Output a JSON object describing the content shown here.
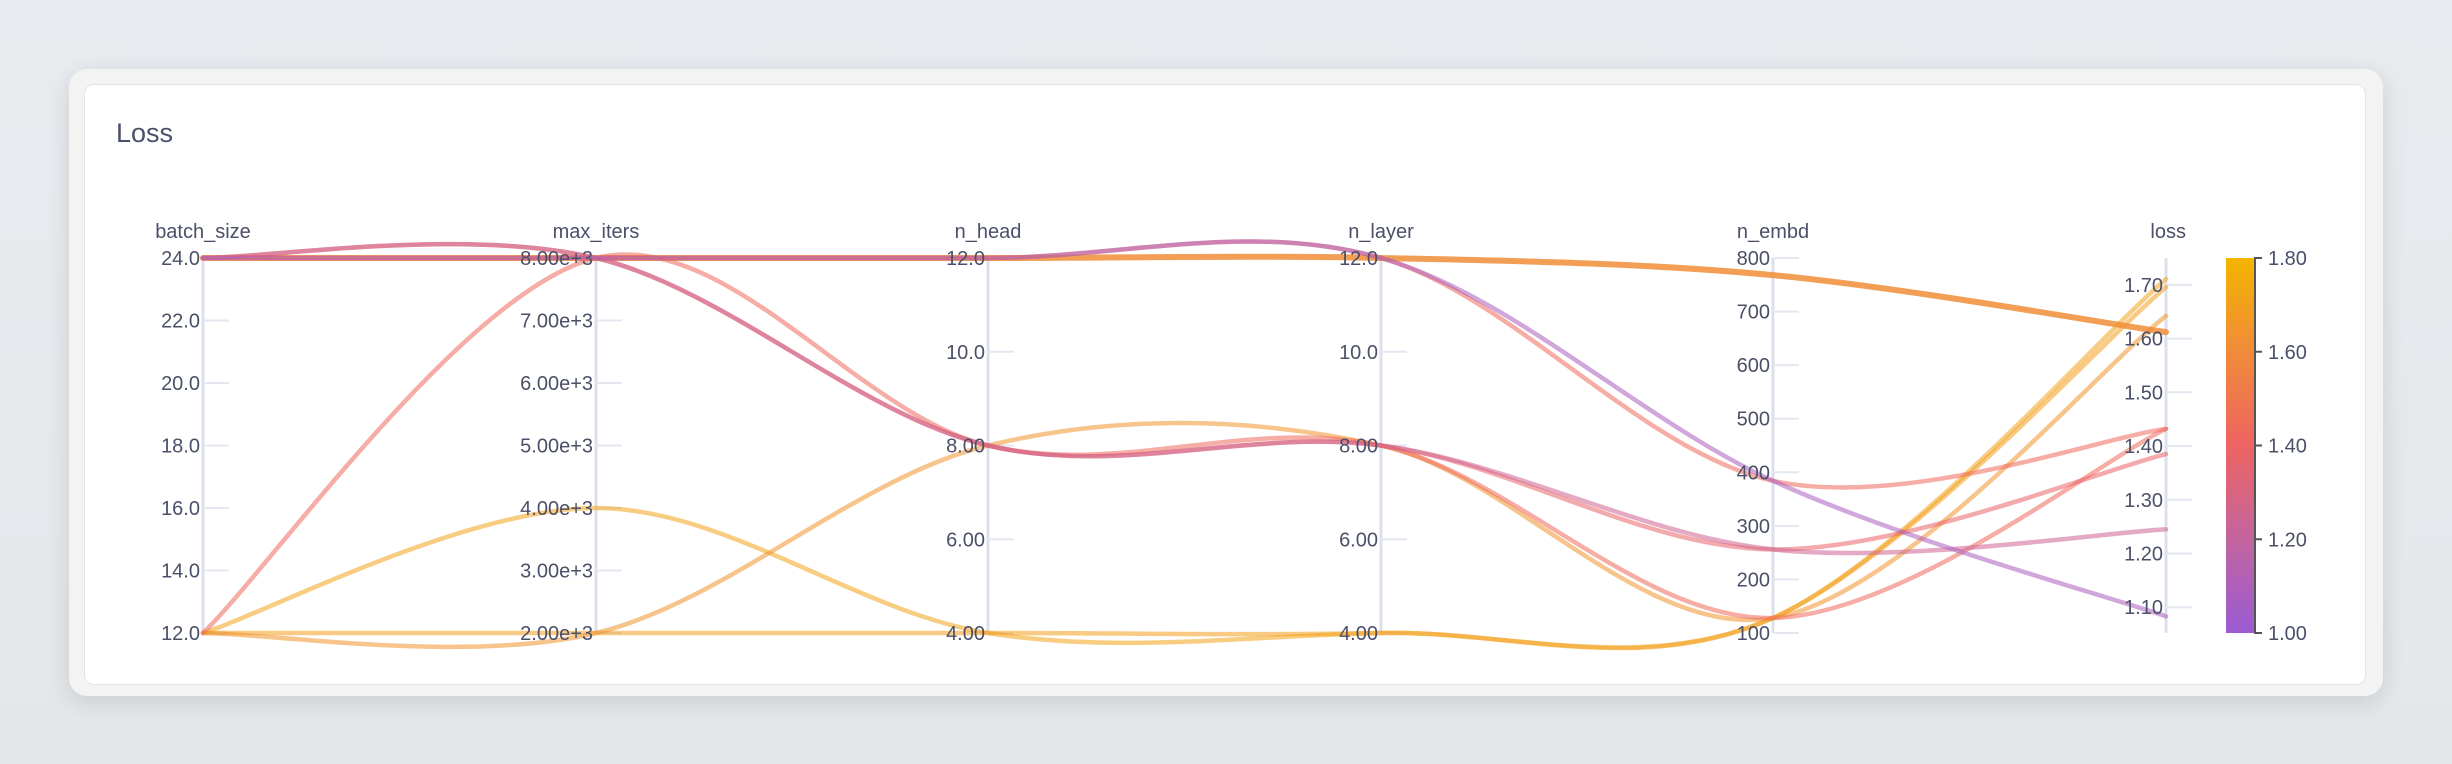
{
  "panel": {
    "title": "Loss"
  },
  "chart_data": {
    "type": "parallel_coordinates",
    "color_by": "loss",
    "dimensions": [
      {
        "label": "batch_size",
        "range": [
          12,
          24
        ],
        "ticks": [
          12,
          14,
          16,
          18,
          20,
          22,
          24
        ],
        "tick_labels": [
          "12.0",
          "14.0",
          "16.0",
          "18.0",
          "20.0",
          "22.0",
          "24.0"
        ]
      },
      {
        "label": "max_iters",
        "range": [
          2000,
          8000
        ],
        "ticks": [
          2000,
          3000,
          4000,
          5000,
          6000,
          7000,
          8000
        ],
        "tick_labels": [
          "2.00e+3",
          "3.00e+3",
          "4.00e+3",
          "5.00e+3",
          "6.00e+3",
          "7.00e+3",
          "8.00e+3"
        ]
      },
      {
        "label": "n_head",
        "range": [
          4,
          12
        ],
        "ticks": [
          4,
          6,
          8,
          10,
          12
        ],
        "tick_labels": [
          "4.00",
          "6.00",
          "8.00",
          "10.0",
          "12.0"
        ]
      },
      {
        "label": "n_layer",
        "range": [
          4,
          12
        ],
        "ticks": [
          4,
          6,
          8,
          10,
          12
        ],
        "tick_labels": [
          "4.00",
          "6.00",
          "8.00",
          "10.0",
          "12.0"
        ]
      },
      {
        "label": "n_embd",
        "range": [
          100,
          800
        ],
        "ticks": [
          100,
          200,
          300,
          400,
          500,
          600,
          700,
          800
        ],
        "tick_labels": [
          "100",
          "200",
          "300",
          "400",
          "500",
          "600",
          "700",
          "800"
        ]
      },
      {
        "label": "loss",
        "range": [
          1.052,
          1.75
        ],
        "ticks": [
          1.1,
          1.2,
          1.3,
          1.4,
          1.5,
          1.6,
          1.7
        ],
        "tick_labels": [
          "1.10",
          "1.20",
          "1.30",
          "1.40",
          "1.50",
          "1.60",
          "1.70"
        ]
      }
    ],
    "runs": [
      [
        24,
        8000,
        12,
        12,
        768,
        1.612
      ],
      [
        24,
        8000,
        12,
        12,
        384,
        1.083
      ],
      [
        24,
        8000,
        12,
        12,
        384,
        1.432
      ],
      [
        24,
        8000,
        8,
        8,
        256,
        1.245
      ],
      [
        24,
        8000,
        8,
        8,
        256,
        1.385
      ],
      [
        12,
        8000,
        8,
        8,
        128,
        1.432
      ],
      [
        12,
        2000,
        8,
        8,
        128,
        1.642
      ],
      [
        12,
        4000,
        4,
        4,
        128,
        1.711
      ],
      [
        12,
        2000,
        4,
        4,
        128,
        1.696
      ]
    ],
    "colorbar": {
      "range": [
        1.0,
        1.8
      ],
      "ticks": [
        1.0,
        1.2,
        1.4,
        1.6,
        1.8
      ],
      "tick_labels": [
        "1.00",
        "1.20",
        "1.40",
        "1.60",
        "1.80"
      ],
      "colors": [
        "#9a5bd3",
        "#c3649f",
        "#ee6462",
        "#f08b3a",
        "#f4b400"
      ]
    }
  }
}
